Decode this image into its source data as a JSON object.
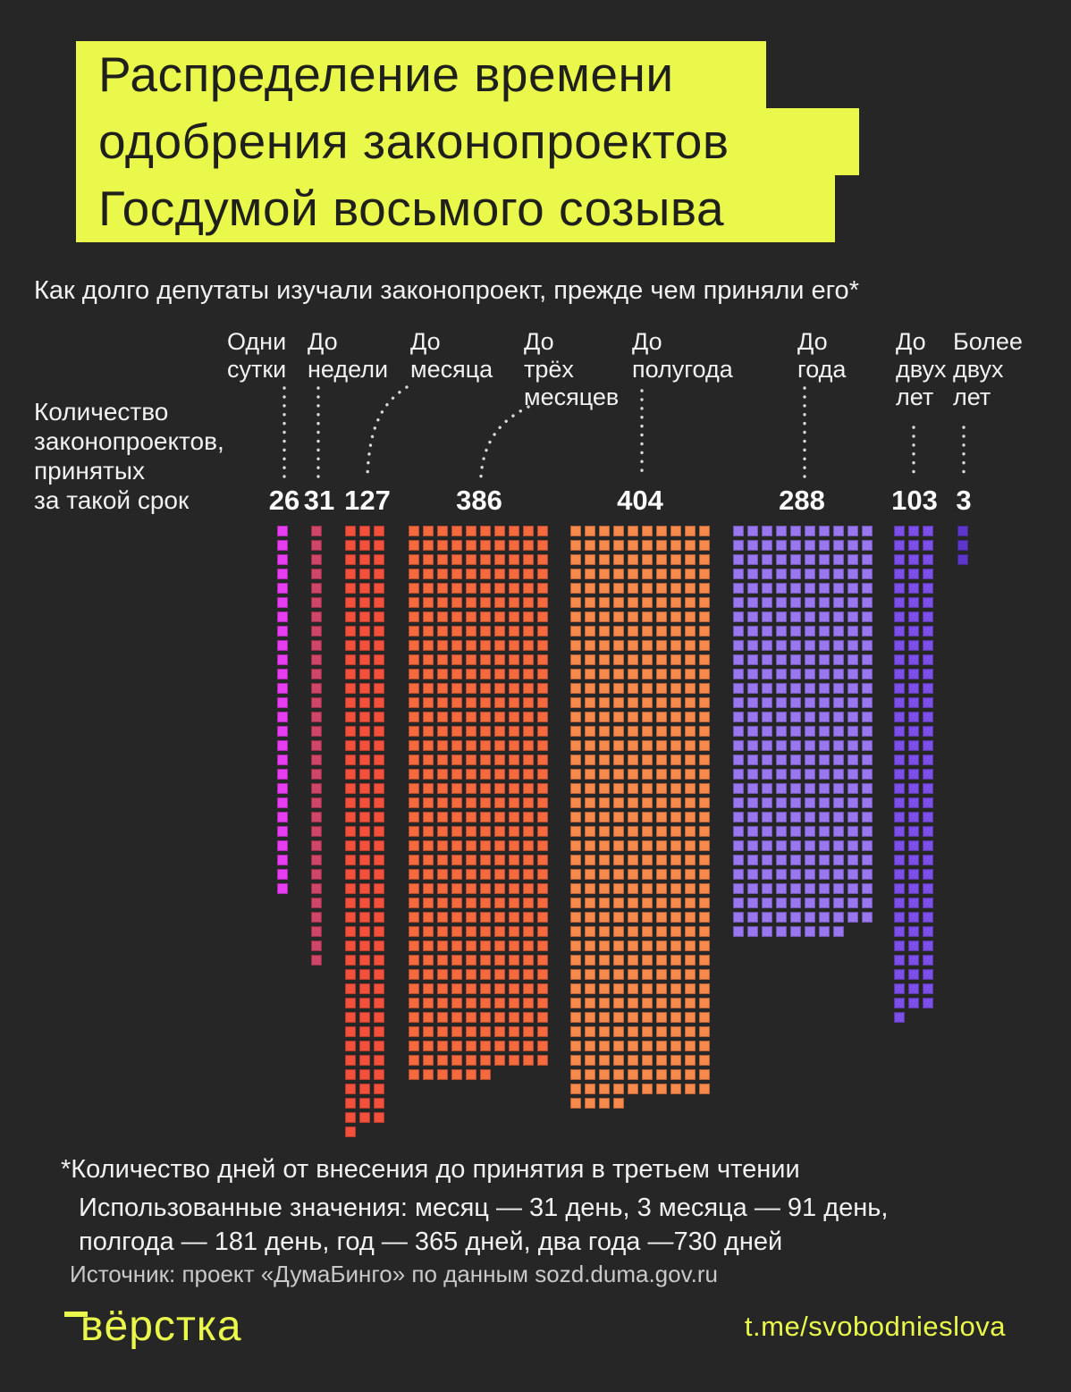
{
  "title": {
    "lines": [
      "Распределение времени",
      "одобрения законопроектов",
      "Госдумой восьмого созыва"
    ]
  },
  "subtitle": "Как долго депутаты изучали законопроект, прежде чем приняли его*",
  "y_axis_label_lines": [
    "Количество",
    "законопроектов,",
    "принятых",
    "за такой срок"
  ],
  "chart_data": {
    "type": "bar",
    "variant": "waffle-columns",
    "title": "Распределение времени одобрения законопроектов Госдумой восьмого созыва",
    "xlabel": "",
    "ylabel": "Количество законопроектов, принятых за такой срок",
    "categories": [
      "Одни сутки",
      "До недели",
      "До месяца",
      "До трёх месяцев",
      "До полугода",
      "До года",
      "До двух лет",
      "Более двух лет"
    ],
    "category_label_lines": [
      [
        "Одни",
        "сутки"
      ],
      [
        "До",
        "недели"
      ],
      [
        "До",
        "месяца"
      ],
      [
        "До",
        "трёх",
        "месяцев"
      ],
      [
        "До",
        "полугода"
      ],
      [
        "До",
        "года"
      ],
      [
        "До",
        "двух",
        "лет"
      ],
      [
        "Более",
        "двух",
        "лет"
      ]
    ],
    "values": [
      26,
      31,
      127,
      386,
      404,
      288,
      103,
      3
    ],
    "colors": [
      "#e73df2",
      "#cd4567",
      "#f2523c",
      "#f5693f",
      "#f8894c",
      "#9778ef",
      "#7b4fe8",
      "#5d37cc"
    ],
    "grid_columns": [
      1,
      1,
      3,
      10,
      10,
      10,
      3,
      1
    ],
    "legend": "none",
    "grid": "off"
  },
  "footnotes": {
    "line1": "*Количество дней от внесения до принятия в третьем чтении",
    "line2": "Использованные значения: месяц — 31 день, 3 месяца — 91 день,",
    "line3": "полгода — 181 день, год — 365 дней, два года —730 дней"
  },
  "source": "Источник: проект «ДумаБинго» по данным sozd.duma.gov.ru",
  "footer": {
    "logo": "вёрстка",
    "link": "t.me/svobodnieslova"
  },
  "colors": {
    "background": "#262626",
    "accent_yellow": "#e9f84b",
    "text": "#f1f1ef",
    "muted_text": "#c9c9c8",
    "leader_dots": "#d8d8d8",
    "title_text": "#1f1f1c"
  }
}
